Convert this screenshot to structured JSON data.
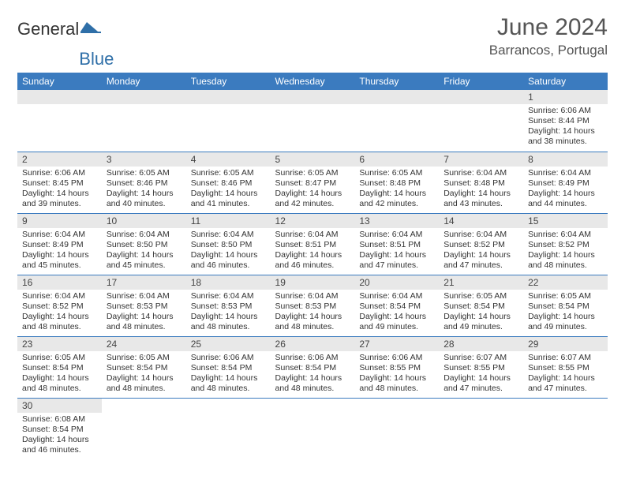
{
  "logo": {
    "text1": "General",
    "text2": "Blue"
  },
  "title": "June 2024",
  "location": "Barrancos, Portugal",
  "colors": {
    "header_bg": "#3b7bbf",
    "header_text": "#ffffff",
    "daynum_bg": "#e8e8e8",
    "row_border": "#3b7bbf",
    "logo_blue": "#2f6fa8",
    "body_text": "#333333"
  },
  "weekdays": [
    "Sunday",
    "Monday",
    "Tuesday",
    "Wednesday",
    "Thursday",
    "Friday",
    "Saturday"
  ],
  "weeks": [
    [
      null,
      null,
      null,
      null,
      null,
      null,
      {
        "n": "1",
        "sunrise": "6:06 AM",
        "sunset": "8:44 PM",
        "daylight": "14 hours and 38 minutes."
      }
    ],
    [
      {
        "n": "2",
        "sunrise": "6:06 AM",
        "sunset": "8:45 PM",
        "daylight": "14 hours and 39 minutes."
      },
      {
        "n": "3",
        "sunrise": "6:05 AM",
        "sunset": "8:46 PM",
        "daylight": "14 hours and 40 minutes."
      },
      {
        "n": "4",
        "sunrise": "6:05 AM",
        "sunset": "8:46 PM",
        "daylight": "14 hours and 41 minutes."
      },
      {
        "n": "5",
        "sunrise": "6:05 AM",
        "sunset": "8:47 PM",
        "daylight": "14 hours and 42 minutes."
      },
      {
        "n": "6",
        "sunrise": "6:05 AM",
        "sunset": "8:48 PM",
        "daylight": "14 hours and 42 minutes."
      },
      {
        "n": "7",
        "sunrise": "6:04 AM",
        "sunset": "8:48 PM",
        "daylight": "14 hours and 43 minutes."
      },
      {
        "n": "8",
        "sunrise": "6:04 AM",
        "sunset": "8:49 PM",
        "daylight": "14 hours and 44 minutes."
      }
    ],
    [
      {
        "n": "9",
        "sunrise": "6:04 AM",
        "sunset": "8:49 PM",
        "daylight": "14 hours and 45 minutes."
      },
      {
        "n": "10",
        "sunrise": "6:04 AM",
        "sunset": "8:50 PM",
        "daylight": "14 hours and 45 minutes."
      },
      {
        "n": "11",
        "sunrise": "6:04 AM",
        "sunset": "8:50 PM",
        "daylight": "14 hours and 46 minutes."
      },
      {
        "n": "12",
        "sunrise": "6:04 AM",
        "sunset": "8:51 PM",
        "daylight": "14 hours and 46 minutes."
      },
      {
        "n": "13",
        "sunrise": "6:04 AM",
        "sunset": "8:51 PM",
        "daylight": "14 hours and 47 minutes."
      },
      {
        "n": "14",
        "sunrise": "6:04 AM",
        "sunset": "8:52 PM",
        "daylight": "14 hours and 47 minutes."
      },
      {
        "n": "15",
        "sunrise": "6:04 AM",
        "sunset": "8:52 PM",
        "daylight": "14 hours and 48 minutes."
      }
    ],
    [
      {
        "n": "16",
        "sunrise": "6:04 AM",
        "sunset": "8:52 PM",
        "daylight": "14 hours and 48 minutes."
      },
      {
        "n": "17",
        "sunrise": "6:04 AM",
        "sunset": "8:53 PM",
        "daylight": "14 hours and 48 minutes."
      },
      {
        "n": "18",
        "sunrise": "6:04 AM",
        "sunset": "8:53 PM",
        "daylight": "14 hours and 48 minutes."
      },
      {
        "n": "19",
        "sunrise": "6:04 AM",
        "sunset": "8:53 PM",
        "daylight": "14 hours and 48 minutes."
      },
      {
        "n": "20",
        "sunrise": "6:04 AM",
        "sunset": "8:54 PM",
        "daylight": "14 hours and 49 minutes."
      },
      {
        "n": "21",
        "sunrise": "6:05 AM",
        "sunset": "8:54 PM",
        "daylight": "14 hours and 49 minutes."
      },
      {
        "n": "22",
        "sunrise": "6:05 AM",
        "sunset": "8:54 PM",
        "daylight": "14 hours and 49 minutes."
      }
    ],
    [
      {
        "n": "23",
        "sunrise": "6:05 AM",
        "sunset": "8:54 PM",
        "daylight": "14 hours and 48 minutes."
      },
      {
        "n": "24",
        "sunrise": "6:05 AM",
        "sunset": "8:54 PM",
        "daylight": "14 hours and 48 minutes."
      },
      {
        "n": "25",
        "sunrise": "6:06 AM",
        "sunset": "8:54 PM",
        "daylight": "14 hours and 48 minutes."
      },
      {
        "n": "26",
        "sunrise": "6:06 AM",
        "sunset": "8:54 PM",
        "daylight": "14 hours and 48 minutes."
      },
      {
        "n": "27",
        "sunrise": "6:06 AM",
        "sunset": "8:55 PM",
        "daylight": "14 hours and 48 minutes."
      },
      {
        "n": "28",
        "sunrise": "6:07 AM",
        "sunset": "8:55 PM",
        "daylight": "14 hours and 47 minutes."
      },
      {
        "n": "29",
        "sunrise": "6:07 AM",
        "sunset": "8:55 PM",
        "daylight": "14 hours and 47 minutes."
      }
    ],
    [
      {
        "n": "30",
        "sunrise": "6:08 AM",
        "sunset": "8:54 PM",
        "daylight": "14 hours and 46 minutes."
      },
      null,
      null,
      null,
      null,
      null,
      null
    ]
  ],
  "labels": {
    "sunrise": "Sunrise:",
    "sunset": "Sunset:",
    "daylight": "Daylight:"
  }
}
